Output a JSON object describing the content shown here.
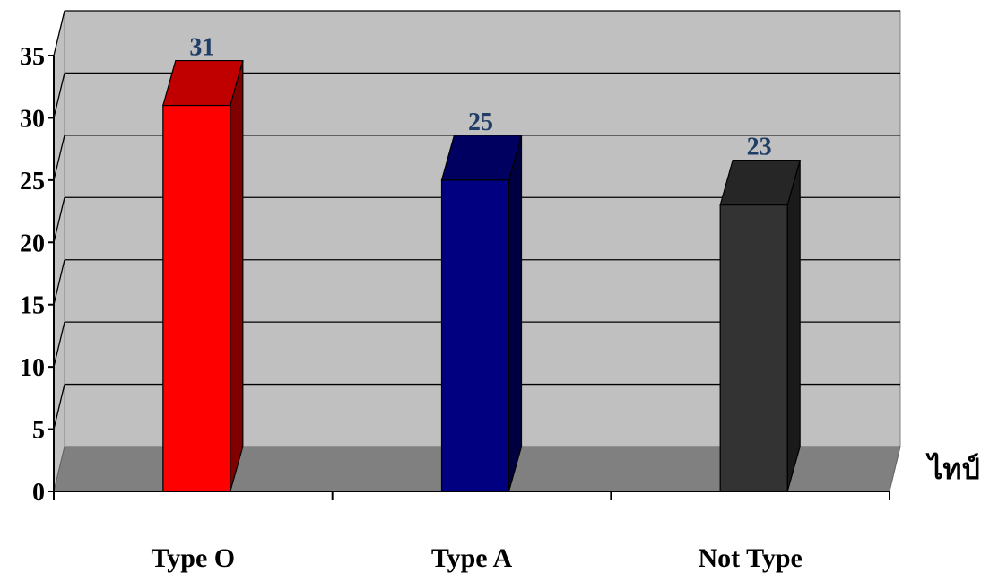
{
  "chart_data": {
    "type": "bar",
    "categories": [
      "Type O",
      "Type A",
      "Not Type"
    ],
    "values": [
      31,
      25,
      23
    ],
    "data_labels": [
      "31",
      "25",
      "23"
    ],
    "colors": {
      "Type O": {
        "front": "#ff0000",
        "top": "#c00000",
        "side": "#800000"
      },
      "Type A": {
        "front": "#000080",
        "top": "#000060",
        "side": "#000040"
      },
      "Not Type": {
        "front": "#333333",
        "top": "#262626",
        "side": "#1a1a1a"
      }
    },
    "wall_color": "#c0c0c0",
    "floor_color": "#808080",
    "gridline_color": "#000000",
    "data_label_color": "#1f3d66",
    "ylim": [
      0,
      35
    ],
    "yticks": [
      0,
      5,
      10,
      15,
      20,
      25,
      30,
      35
    ],
    "ytick_labels": [
      "0",
      "5",
      "10",
      "15",
      "20",
      "25",
      "30",
      "35"
    ],
    "xlabel": "ไทป์",
    "ylabel": "",
    "title": "",
    "grid": true,
    "legend": "none",
    "style": "3d-column"
  }
}
